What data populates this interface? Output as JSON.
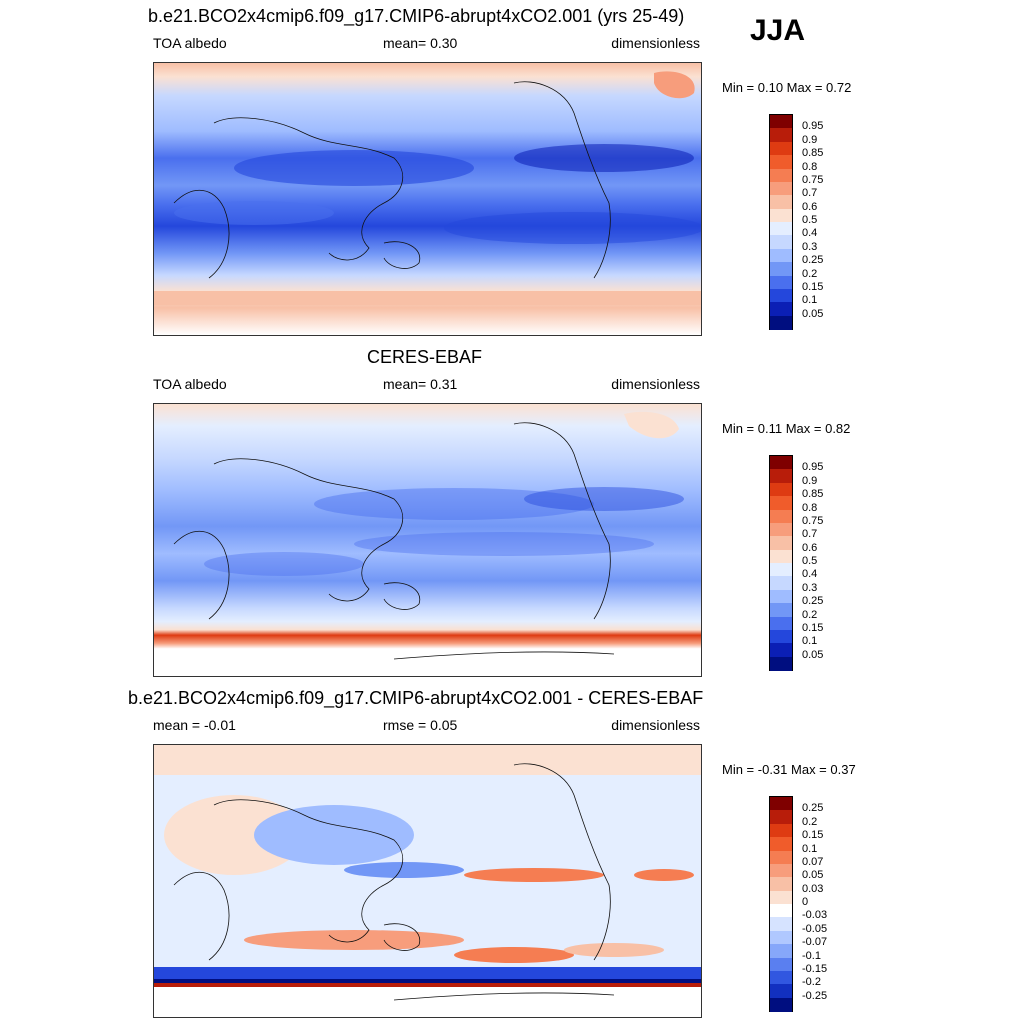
{
  "season": "JJA",
  "panels": [
    {
      "title": "b.e21.BCO2x4cmip6.f09_g17.CMIP6-abrupt4xCO2.001 (yrs 25-49)",
      "left": "TOA albedo",
      "center": "mean=   0.30",
      "right": "dimensionless",
      "minmax": "Min =   0.10 Max =   0.72",
      "colorbar": {
        "labels": [
          "0.95",
          "0.9",
          "0.85",
          "0.8",
          "0.75",
          "0.7",
          "0.6",
          "0.5",
          "0.4",
          "0.3",
          "0.25",
          "0.2",
          "0.15",
          "0.1",
          "0.05"
        ],
        "colors": [
          "#7f0000",
          "#b81d0a",
          "#de3b12",
          "#f05c2b",
          "#f57d52",
          "#f79d7c",
          "#f8c0a6",
          "#fbe1d2",
          "#e4eeff",
          "#c6d8ff",
          "#9fbcff",
          "#7297f6",
          "#4a6fee",
          "#2447dc",
          "#0b1fb5",
          "#000e80"
        ]
      }
    },
    {
      "title": "CERES-EBAF",
      "left": "TOA albedo",
      "center": "mean=   0.31",
      "right": "dimensionless",
      "minmax": "Min =   0.11 Max =   0.82",
      "colorbar": {
        "labels": [
          "0.95",
          "0.9",
          "0.85",
          "0.8",
          "0.75",
          "0.7",
          "0.6",
          "0.5",
          "0.4",
          "0.3",
          "0.25",
          "0.2",
          "0.15",
          "0.1",
          "0.05"
        ],
        "colors": [
          "#7f0000",
          "#b81d0a",
          "#de3b12",
          "#f05c2b",
          "#f57d52",
          "#f79d7c",
          "#f8c0a6",
          "#fbe1d2",
          "#e4eeff",
          "#c6d8ff",
          "#9fbcff",
          "#7297f6",
          "#4a6fee",
          "#2447dc",
          "#0b1fb5",
          "#000e80"
        ]
      }
    },
    {
      "title": "b.e21.BCO2x4cmip6.f09_g17.CMIP6-abrupt4xCO2.001 - CERES-EBAF",
      "left": "mean =  -0.01",
      "center": "rmse =   0.05",
      "right": "dimensionless",
      "minmax": "Min =  -0.31 Max =   0.37",
      "colorbar": {
        "labels": [
          "0.25",
          "0.2",
          "0.15",
          "0.1",
          "0.07",
          "0.05",
          "0.03",
          "0",
          "-0.03",
          "-0.05",
          "-0.07",
          "-0.1",
          "-0.15",
          "-0.2",
          "-0.25"
        ],
        "colors": [
          "#7f0000",
          "#b81d0a",
          "#de3b12",
          "#f05c2b",
          "#f57d52",
          "#f79d7c",
          "#f8c0a6",
          "#fbe1d2",
          "#ffffff",
          "#d6e3ff",
          "#b0c8ff",
          "#86a7fa",
          "#5a7ff0",
          "#3157e0",
          "#1230c0",
          "#000e80"
        ]
      }
    }
  ]
}
